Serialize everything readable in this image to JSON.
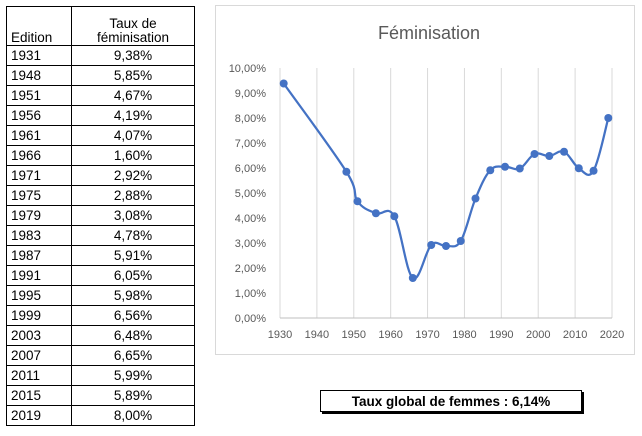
{
  "table": {
    "header_edition": "Edition",
    "header_taux_line1": "Taux de",
    "header_taux_line2": "féminisation",
    "rows": [
      {
        "year": "1931",
        "value": "9,38%"
      },
      {
        "year": "1948",
        "value": "5,85%"
      },
      {
        "year": "1951",
        "value": "4,67%"
      },
      {
        "year": "1956",
        "value": "4,19%"
      },
      {
        "year": "1961",
        "value": "4,07%"
      },
      {
        "year": "1966",
        "value": "1,60%"
      },
      {
        "year": "1971",
        "value": "2,92%"
      },
      {
        "year": "1975",
        "value": "2,88%"
      },
      {
        "year": "1979",
        "value": "3,08%"
      },
      {
        "year": "1983",
        "value": "4,78%"
      },
      {
        "year": "1987",
        "value": "5,91%"
      },
      {
        "year": "1991",
        "value": "6,05%"
      },
      {
        "year": "1995",
        "value": "5,98%"
      },
      {
        "year": "1999",
        "value": "6,56%"
      },
      {
        "year": "2003",
        "value": "6,48%"
      },
      {
        "year": "2007",
        "value": "6,65%"
      },
      {
        "year": "2011",
        "value": "5,99%"
      },
      {
        "year": "2015",
        "value": "5,89%"
      },
      {
        "year": "2019",
        "value": "8,00%"
      }
    ]
  },
  "chart_data": {
    "type": "line",
    "title": "Féminisation",
    "xlabel": "",
    "ylabel": "",
    "xlim": [
      1930,
      2020
    ],
    "ylim": [
      0,
      10
    ],
    "x_ticks": [
      1930,
      1940,
      1950,
      1960,
      1970,
      1980,
      1990,
      2000,
      2010,
      2020
    ],
    "y_ticks": [
      0,
      1,
      2,
      3,
      4,
      5,
      6,
      7,
      8,
      9,
      10
    ],
    "y_tick_labels": [
      "0,00%",
      "1,00%",
      "2,00%",
      "3,00%",
      "4,00%",
      "5,00%",
      "6,00%",
      "7,00%",
      "8,00%",
      "9,00%",
      "10,00%"
    ],
    "grid": "vertical",
    "legend": "none",
    "smooth": true,
    "series": [
      {
        "color": "#4472c4",
        "x": [
          1931,
          1948,
          1951,
          1956,
          1961,
          1966,
          1971,
          1975,
          1979,
          1983,
          1987,
          1991,
          1995,
          1999,
          2003,
          2007,
          2011,
          2015,
          2019
        ],
        "y": [
          9.38,
          5.85,
          4.67,
          4.19,
          4.07,
          1.6,
          2.92,
          2.88,
          3.08,
          4.78,
          5.91,
          6.05,
          5.98,
          6.56,
          6.48,
          6.65,
          5.99,
          5.89,
          8.0
        ]
      }
    ]
  },
  "summary": {
    "label": "Taux global de femmes : 6,14%"
  }
}
